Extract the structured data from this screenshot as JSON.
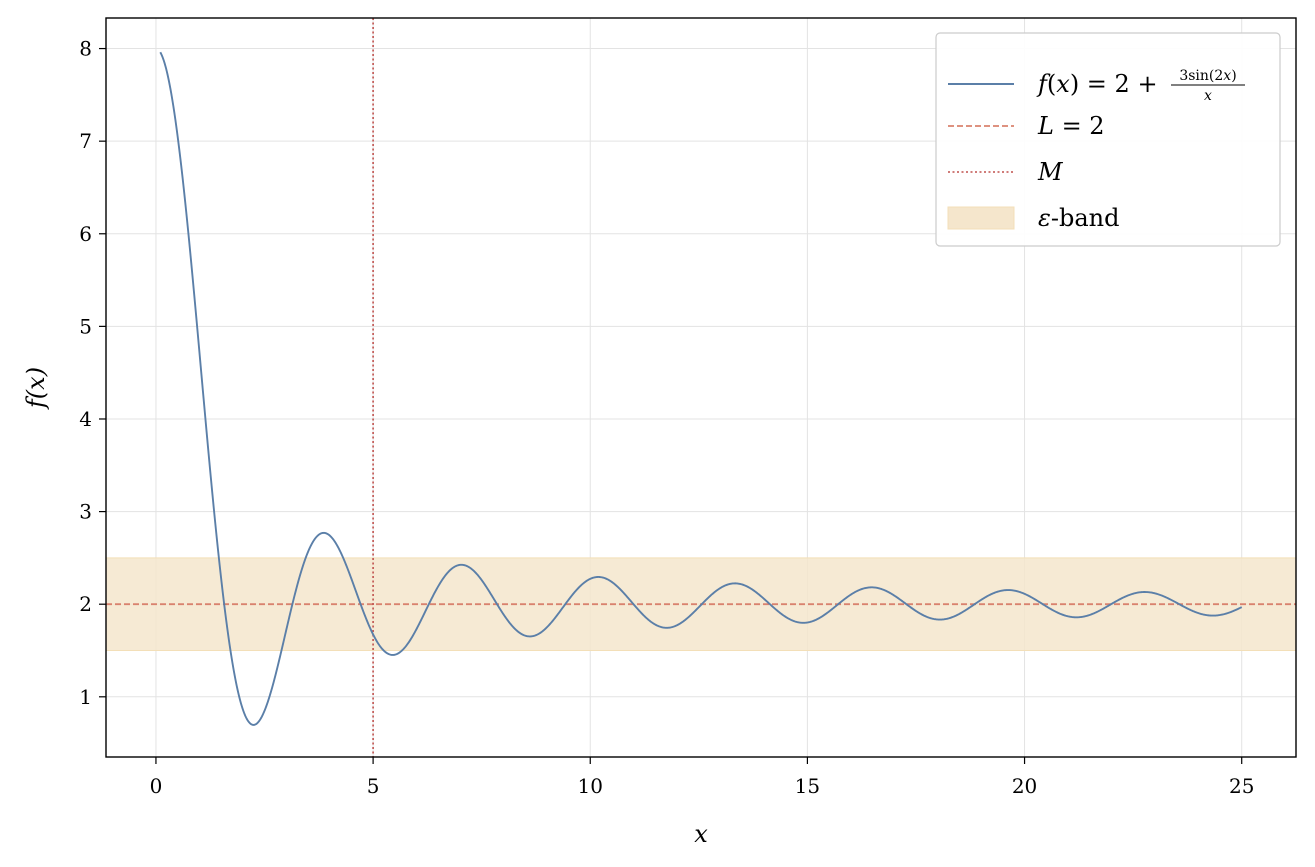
{
  "chart_data": {
    "type": "line",
    "xlabel": "x",
    "ylabel": "f(x)",
    "xlim": [
      -1.15,
      26.25
    ],
    "ylim": [
      0.35,
      8.33
    ],
    "xticks": [
      0,
      5,
      10,
      15,
      20,
      25
    ],
    "yticks": [
      1,
      2,
      3,
      4,
      5,
      6,
      7,
      8
    ],
    "grid": true,
    "legend_position": "top-right",
    "series": [
      {
        "name": "f(x) = 2 + 3sin(2x)/x",
        "kind": "function",
        "formula": "2 + 3*sin(2*x)/x",
        "x_range": [
          0.1,
          25
        ],
        "color": "#5b7fa8",
        "style": "solid"
      },
      {
        "name": "L = 2",
        "kind": "hline",
        "y": 2,
        "color": "#d9826e",
        "style": "dashed"
      },
      {
        "name": "M",
        "kind": "vline",
        "x": 5,
        "color": "#c0504d",
        "style": "dotted"
      },
      {
        "name": "ε-band",
        "kind": "band",
        "y_range": [
          1.5,
          2.5
        ],
        "color": "#f5e6cc"
      }
    ],
    "legend": [
      {
        "label": "f(x) = 2 + 3sin(2x)/x"
      },
      {
        "label": "L = 2"
      },
      {
        "label": "M"
      },
      {
        "label": "ε-band"
      }
    ]
  }
}
